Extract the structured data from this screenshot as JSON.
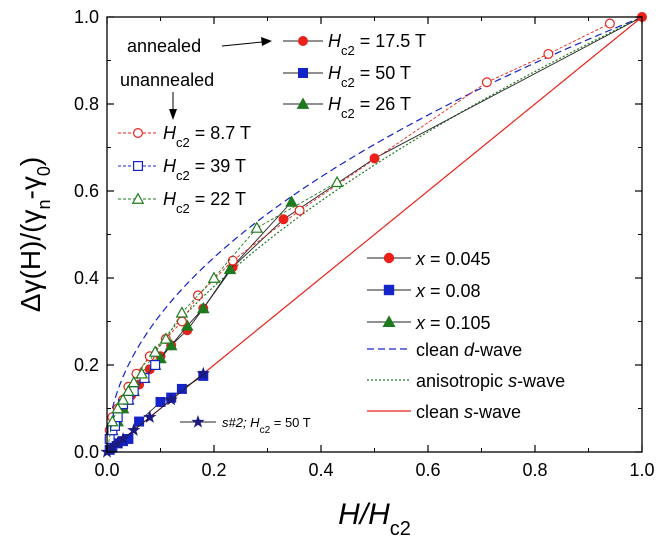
{
  "chart_data": {
    "type": "scatter",
    "title": "",
    "xlabel": {
      "main": "H/H",
      "sub": "c2"
    },
    "ylabel": {
      "pre": "Δγ(H)/(γ",
      "sub1": "n",
      "mid": "-γ",
      "sub2": "0",
      "post": ")"
    },
    "xlim": [
      0,
      1
    ],
    "ylim": [
      0,
      1
    ],
    "xticks": [
      "0.0",
      "0.2",
      "0.4",
      "0.6",
      "0.8",
      "1.0"
    ],
    "yticks": [
      "0.0",
      "0.2",
      "0.4",
      "0.6",
      "0.8",
      "1.0"
    ],
    "grid": false,
    "colors": {
      "red": "#e8221b",
      "blue": "#1424c8",
      "green": "#1f7a1f",
      "navy": "#1a1a80"
    },
    "annotations": {
      "annealed": "annealed",
      "unannealed": "unannealed",
      "s2": {
        "text": "s#2; H",
        "sub": "c2",
        "post": " = 50 T"
      }
    },
    "series": [
      {
        "name": "x = 0.045",
        "legend_var": "x",
        "legend_rest": " = 0.045",
        "group_label": {
          "var": "H",
          "sub": "c2",
          "rest": " = 17.5 T"
        },
        "marker": "circle",
        "fill": "filled",
        "color": "red",
        "x": [
          0.0,
          0.005,
          0.01,
          0.02,
          0.03,
          0.045,
          0.06,
          0.08,
          0.1,
          0.12,
          0.15,
          0.18,
          0.235,
          0.33,
          0.5,
          1.0
        ],
        "y": [
          0.0,
          0.03,
          0.05,
          0.08,
          0.1,
          0.13,
          0.155,
          0.19,
          0.22,
          0.245,
          0.28,
          0.33,
          0.425,
          0.535,
          0.675,
          1.0
        ]
      },
      {
        "name": "x = 0.08",
        "legend_var": "x",
        "legend_rest": " = 0.08",
        "group_label": {
          "var": "H",
          "sub": "c2",
          "rest": " = 50 T"
        },
        "marker": "square",
        "fill": "filled",
        "color": "blue",
        "x": [
          0.0,
          0.005,
          0.01,
          0.02,
          0.03,
          0.04,
          0.06,
          0.1,
          0.12,
          0.14,
          0.18
        ],
        "y": [
          0.0,
          0.005,
          0.01,
          0.02,
          0.025,
          0.03,
          0.07,
          0.115,
          0.125,
          0.145,
          0.175
        ]
      },
      {
        "name": "x = 0.105",
        "legend_var": "x",
        "legend_rest": " = 0.105",
        "group_label": {
          "var": "H",
          "sub": "c2",
          "rest": " = 26 T"
        },
        "marker": "triangle",
        "fill": "filled",
        "color": "green",
        "x": [
          0.0,
          0.01,
          0.02,
          0.03,
          0.04,
          0.05,
          0.07,
          0.09,
          0.1,
          0.12,
          0.15,
          0.18,
          0.23,
          0.345
        ],
        "y": [
          0.0,
          0.05,
          0.07,
          0.1,
          0.12,
          0.14,
          0.17,
          0.2,
          0.215,
          0.245,
          0.29,
          0.33,
          0.42,
          0.575
        ]
      },
      {
        "name": "Hc2 = 8.7 T",
        "group_label": {
          "var": "H",
          "sub": "c2",
          "rest": " = 8.7 T"
        },
        "marker": "circle",
        "fill": "open",
        "color": "red",
        "x": [
          0.0,
          0.005,
          0.01,
          0.02,
          0.03,
          0.04,
          0.055,
          0.08,
          0.11,
          0.14,
          0.17,
          0.235,
          0.36,
          0.71,
          0.825,
          0.94
        ],
        "y": [
          0.0,
          0.05,
          0.08,
          0.1,
          0.12,
          0.15,
          0.18,
          0.22,
          0.26,
          0.3,
          0.36,
          0.44,
          0.555,
          0.85,
          0.915,
          0.985
        ]
      },
      {
        "name": "Hc2 = 39 T",
        "group_label": {
          "var": "H",
          "sub": "c2",
          "rest": " = 39 T"
        },
        "marker": "square",
        "fill": "open",
        "color": "blue",
        "x": [
          0.0,
          0.005,
          0.01,
          0.015,
          0.02,
          0.03,
          0.04,
          0.05,
          0.07,
          0.09
        ],
        "y": [
          0.0,
          0.03,
          0.05,
          0.06,
          0.08,
          0.11,
          0.12,
          0.14,
          0.17,
          0.2
        ]
      },
      {
        "name": "Hc2 = 22 T",
        "group_label": {
          "var": "H",
          "sub": "c2",
          "rest": " = 22 T"
        },
        "marker": "triangle",
        "fill": "open",
        "color": "green",
        "x": [
          0.0,
          0.01,
          0.02,
          0.03,
          0.04,
          0.05,
          0.065,
          0.09,
          0.11,
          0.14,
          0.2,
          0.28,
          0.43
        ],
        "y": [
          0.0,
          0.07,
          0.1,
          0.12,
          0.14,
          0.16,
          0.18,
          0.23,
          0.26,
          0.32,
          0.4,
          0.515,
          0.62
        ]
      },
      {
        "name": "s#2; Hc2 = 50 T",
        "marker": "star",
        "fill": "filled",
        "color": "navy",
        "x": [
          0.0,
          0.01,
          0.02,
          0.03,
          0.05,
          0.08,
          0.12,
          0.18
        ],
        "y": [
          0.0,
          0.01,
          0.02,
          0.03,
          0.05,
          0.08,
          0.12,
          0.18
        ]
      }
    ],
    "curves": [
      {
        "name": "clean d-wave",
        "legend_var": "d",
        "legend_pre": "clean ",
        "legend_post": "-wave",
        "style": "dashed",
        "color": "blue"
      },
      {
        "name": "anisotropic s-wave",
        "legend_var": "s",
        "legend_pre": "anisotropic ",
        "legend_post": "-wave",
        "style": "dotted",
        "color": "green"
      },
      {
        "name": "clean s-wave",
        "legend_var": "s",
        "legend_pre": "clean ",
        "legend_post": "-wave",
        "style": "solid",
        "color": "red"
      }
    ]
  }
}
